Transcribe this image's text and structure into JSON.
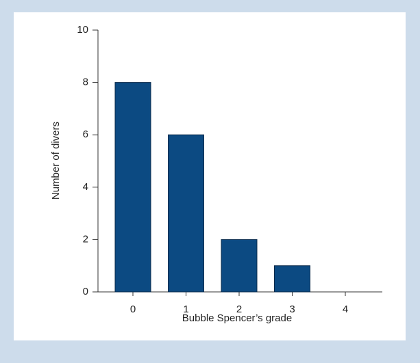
{
  "chart_data": {
    "type": "bar",
    "x_label": "Bubble Spencer’s grade",
    "y_label": "Number of divers",
    "categories": [
      "0",
      "1",
      "2",
      "3",
      "4"
    ],
    "values": [
      8,
      6,
      2,
      1,
      0
    ],
    "color": "#0c4a82",
    "ylim": [
      0,
      10
    ],
    "yticks": [
      0,
      2,
      4,
      6,
      8,
      10
    ],
    "grid": false
  }
}
